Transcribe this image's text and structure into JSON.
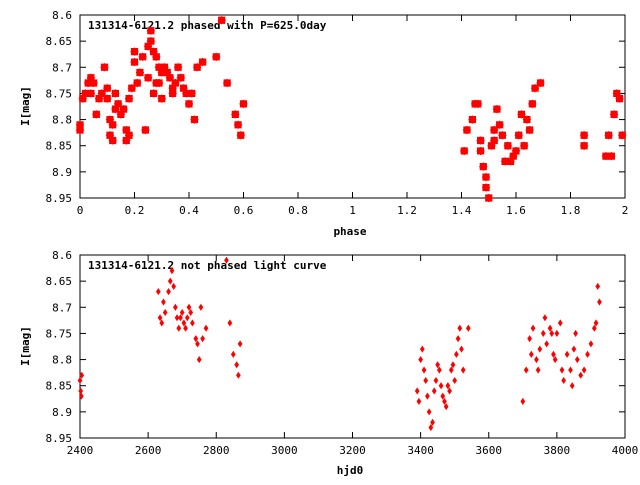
{
  "chart_data": [
    {
      "type": "scatter",
      "title": "131314-6121.2 phased with P=625.0day",
      "xlabel": "phase",
      "ylabel": "I[mag]",
      "xlim": [
        0,
        2
      ],
      "ylim": [
        8.95,
        8.6
      ],
      "y_inverted": true,
      "xticks": [
        "0",
        "0.2",
        "0.4",
        "0.6",
        "0.8",
        "1",
        "1.2",
        "1.4",
        "1.6",
        "1.8",
        "2"
      ],
      "yticks": [
        "8.6",
        "8.65",
        "8.7",
        "8.75",
        "8.8",
        "8.85",
        "8.9",
        "8.95"
      ],
      "marker": "star",
      "color": "#ff0000",
      "grid": false,
      "x": [
        0.0,
        0.0,
        0.01,
        0.02,
        0.03,
        0.04,
        0.04,
        0.05,
        0.06,
        0.07,
        0.08,
        0.09,
        0.1,
        0.1,
        0.11,
        0.11,
        0.12,
        0.12,
        0.13,
        0.13,
        0.14,
        0.15,
        0.16,
        0.17,
        0.17,
        0.18,
        0.18,
        0.19,
        0.2,
        0.2,
        0.21,
        0.22,
        0.23,
        0.24,
        0.25,
        0.25,
        0.26,
        0.26,
        0.27,
        0.27,
        0.28,
        0.28,
        0.29,
        0.29,
        0.3,
        0.3,
        0.31,
        0.32,
        0.33,
        0.34,
        0.34,
        0.35,
        0.36,
        0.37,
        0.38,
        0.39,
        0.4,
        0.41,
        0.42,
        0.43,
        0.45,
        0.5,
        0.52,
        0.54,
        0.57,
        0.58,
        0.59,
        0.6,
        1.41,
        1.42,
        1.44,
        1.45,
        1.46,
        1.47,
        1.47,
        1.48,
        1.49,
        1.49,
        1.5,
        1.51,
        1.52,
        1.52,
        1.53,
        1.54,
        1.55,
        1.56,
        1.57,
        1.58,
        1.59,
        1.6,
        1.61,
        1.62,
        1.63,
        1.64,
        1.65,
        1.66,
        1.67,
        1.69,
        1.85,
        1.85,
        1.93,
        1.94,
        1.95,
        1.96,
        1.97,
        1.98,
        1.99
      ],
      "y": [
        8.82,
        8.81,
        8.76,
        8.75,
        8.73,
        8.72,
        8.75,
        8.73,
        8.79,
        8.76,
        8.75,
        8.7,
        8.74,
        8.76,
        8.8,
        8.83,
        8.81,
        8.84,
        8.78,
        8.75,
        8.77,
        8.79,
        8.78,
        8.82,
        8.84,
        8.76,
        8.83,
        8.74,
        8.67,
        8.69,
        8.73,
        8.71,
        8.68,
        8.82,
        8.72,
        8.66,
        8.63,
        8.65,
        8.75,
        8.67,
        8.68,
        8.73,
        8.7,
        8.73,
        8.71,
        8.76,
        8.7,
        8.71,
        8.72,
        8.74,
        8.75,
        8.73,
        8.7,
        8.72,
        8.74,
        8.75,
        8.77,
        8.75,
        8.8,
        8.7,
        8.69,
        8.68,
        8.61,
        8.73,
        8.79,
        8.81,
        8.83,
        8.77,
        8.86,
        8.82,
        8.8,
        8.77,
        8.77,
        8.84,
        8.86,
        8.89,
        8.91,
        8.93,
        8.95,
        8.85,
        8.82,
        8.84,
        8.78,
        8.81,
        8.83,
        8.88,
        8.85,
        8.88,
        8.87,
        8.86,
        8.83,
        8.79,
        8.85,
        8.8,
        8.82,
        8.77,
        8.74,
        8.73,
        8.83,
        8.85,
        8.87,
        8.83,
        8.87,
        8.79,
        8.75,
        8.76,
        8.83
      ],
      "label_layout": {
        "padding": {
          "right": 14
        },
        "ylabel_offset": 6
      }
    },
    {
      "type": "scatter",
      "title": "131314-6121.2 not phased light curve",
      "xlabel": "hjd0",
      "ylabel": "I[mag]",
      "xlim": [
        2400,
        4000
      ],
      "ylim": [
        8.95,
        8.6
      ],
      "y_inverted": true,
      "xticks": [
        "2400",
        "2600",
        "2800",
        "3000",
        "3200",
        "3400",
        "3600",
        "3800",
        "4000"
      ],
      "yticks": [
        "8.6",
        "8.65",
        "8.7",
        "8.75",
        "8.8",
        "8.85",
        "8.9",
        "8.95"
      ],
      "marker": "diamond",
      "color": "#ff0000",
      "grid": false,
      "x": [
        2400,
        2402,
        2404,
        2405,
        2630,
        2635,
        2640,
        2645,
        2650,
        2660,
        2665,
        2670,
        2675,
        2680,
        2685,
        2690,
        2695,
        2700,
        2705,
        2710,
        2715,
        2720,
        2725,
        2730,
        2740,
        2745,
        2750,
        2755,
        2760,
        2770,
        2830,
        2840,
        2850,
        2860,
        2865,
        2870,
        3390,
        3395,
        3400,
        3405,
        3410,
        3415,
        3420,
        3425,
        3430,
        3435,
        3440,
        3445,
        3450,
        3455,
        3460,
        3465,
        3470,
        3475,
        3480,
        3485,
        3490,
        3495,
        3500,
        3505,
        3510,
        3515,
        3520,
        3525,
        3540,
        3700,
        3710,
        3720,
        3725,
        3730,
        3740,
        3745,
        3750,
        3760,
        3765,
        3770,
        3780,
        3785,
        3790,
        3795,
        3800,
        3810,
        3815,
        3820,
        3830,
        3840,
        3845,
        3850,
        3855,
        3860,
        3870,
        3880,
        3890,
        3900,
        3910,
        3915,
        3920,
        3925
      ],
      "y": [
        8.84,
        8.86,
        8.87,
        8.83,
        8.67,
        8.72,
        8.73,
        8.69,
        8.71,
        8.67,
        8.65,
        8.63,
        8.66,
        8.7,
        8.72,
        8.74,
        8.72,
        8.71,
        8.73,
        8.74,
        8.72,
        8.7,
        8.71,
        8.73,
        8.76,
        8.77,
        8.8,
        8.7,
        8.76,
        8.74,
        8.61,
        8.73,
        8.79,
        8.81,
        8.83,
        8.77,
        8.86,
        8.88,
        8.8,
        8.78,
        8.82,
        8.84,
        8.87,
        8.9,
        8.93,
        8.92,
        8.86,
        8.84,
        8.81,
        8.82,
        8.85,
        8.87,
        8.88,
        8.89,
        8.85,
        8.86,
        8.82,
        8.81,
        8.84,
        8.79,
        8.76,
        8.74,
        8.78,
        8.82,
        8.74,
        8.88,
        8.82,
        8.76,
        8.79,
        8.74,
        8.8,
        8.82,
        8.78,
        8.75,
        8.72,
        8.77,
        8.74,
        8.75,
        8.79,
        8.8,
        8.75,
        8.73,
        8.82,
        8.84,
        8.79,
        8.82,
        8.85,
        8.78,
        8.75,
        8.8,
        8.83,
        8.82,
        8.79,
        8.77,
        8.74,
        8.73,
        8.66,
        8.69
      ],
      "label_layout": {
        "padding": {
          "right": 14
        },
        "ylabel_offset": 6
      }
    }
  ]
}
